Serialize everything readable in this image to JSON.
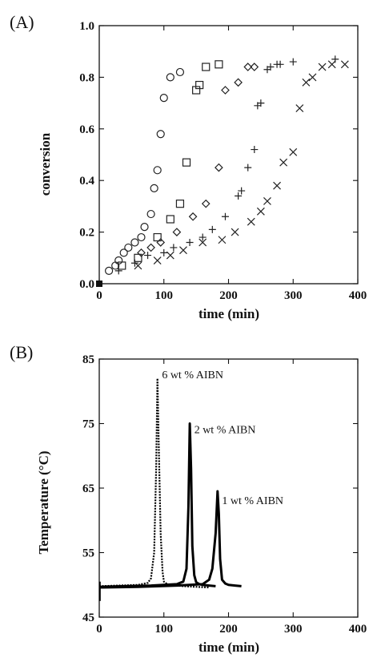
{
  "chart_data": [
    {
      "type": "scatter",
      "panel_label": "(A)",
      "xlabel": "time (min)",
      "ylabel": "conversion",
      "xlim": [
        0,
        400
      ],
      "ylim": [
        0,
        1.0
      ],
      "xticks": [
        "0",
        "100",
        "200",
        "300",
        "400"
      ],
      "yticks": [
        "0.0",
        "0.2",
        "0.4",
        "0.6",
        "0.8",
        "1.0"
      ],
      "grid": false,
      "series": [
        {
          "marker": "circle",
          "points": [
            [
              15,
              0.05
            ],
            [
              25,
              0.07
            ],
            [
              30,
              0.09
            ],
            [
              38,
              0.12
            ],
            [
              45,
              0.14
            ],
            [
              55,
              0.16
            ],
            [
              65,
              0.18
            ],
            [
              70,
              0.22
            ],
            [
              80,
              0.27
            ],
            [
              85,
              0.37
            ],
            [
              90,
              0.44
            ],
            [
              95,
              0.58
            ],
            [
              100,
              0.72
            ],
            [
              110,
              0.8
            ],
            [
              125,
              0.82
            ]
          ]
        },
        {
          "marker": "square",
          "points": [
            [
              35,
              0.07
            ],
            [
              60,
              0.1
            ],
            [
              90,
              0.18
            ],
            [
              110,
              0.25
            ],
            [
              125,
              0.31
            ],
            [
              135,
              0.47
            ],
            [
              150,
              0.75
            ],
            [
              155,
              0.77
            ],
            [
              165,
              0.84
            ],
            [
              185,
              0.85
            ]
          ]
        },
        {
          "marker": "diamond",
          "points": [
            [
              65,
              0.12
            ],
            [
              80,
              0.14
            ],
            [
              95,
              0.16
            ],
            [
              120,
              0.2
            ],
            [
              145,
              0.26
            ],
            [
              165,
              0.31
            ],
            [
              185,
              0.45
            ],
            [
              195,
              0.75
            ],
            [
              215,
              0.78
            ],
            [
              230,
              0.84
            ],
            [
              240,
              0.84
            ]
          ]
        },
        {
          "marker": "plus",
          "points": [
            [
              30,
              0.05
            ],
            [
              55,
              0.08
            ],
            [
              75,
              0.11
            ],
            [
              100,
              0.12
            ],
            [
              115,
              0.14
            ],
            [
              140,
              0.16
            ],
            [
              160,
              0.18
            ],
            [
              175,
              0.21
            ],
            [
              195,
              0.26
            ],
            [
              215,
              0.34
            ],
            [
              220,
              0.36
            ],
            [
              230,
              0.45
            ],
            [
              240,
              0.52
            ],
            [
              245,
              0.69
            ],
            [
              250,
              0.7
            ],
            [
              260,
              0.83
            ],
            [
              265,
              0.84
            ],
            [
              275,
              0.85
            ],
            [
              280,
              0.85
            ],
            [
              300,
              0.86
            ],
            [
              365,
              0.87
            ]
          ]
        },
        {
          "marker": "cross",
          "points": [
            [
              60,
              0.07
            ],
            [
              90,
              0.09
            ],
            [
              110,
              0.11
            ],
            [
              130,
              0.13
            ],
            [
              160,
              0.16
            ],
            [
              190,
              0.17
            ],
            [
              210,
              0.2
            ],
            [
              235,
              0.24
            ],
            [
              250,
              0.28
            ],
            [
              260,
              0.32
            ],
            [
              275,
              0.38
            ],
            [
              285,
              0.47
            ],
            [
              300,
              0.51
            ],
            [
              310,
              0.68
            ],
            [
              320,
              0.78
            ],
            [
              330,
              0.8
            ],
            [
              345,
              0.84
            ],
            [
              360,
              0.85
            ],
            [
              380,
              0.85
            ]
          ]
        }
      ],
      "origin_marker": [
        0,
        0
      ]
    },
    {
      "type": "line",
      "panel_label": "(B)",
      "xlabel": "time (min)",
      "ylabel": "Temperature (°C)",
      "xlim": [
        0,
        400
      ],
      "ylim": [
        45,
        85
      ],
      "xticks": [
        "0",
        "100",
        "200",
        "300",
        "400"
      ],
      "yticks": [
        "45",
        "55",
        "65",
        "75",
        "85"
      ],
      "grid": false,
      "series": [
        {
          "label": "6 wt % AIBN",
          "style": "dotted",
          "width": 2.2,
          "x": [
            0,
            30,
            60,
            75,
            80,
            85,
            88,
            90,
            92,
            95,
            98,
            100,
            105,
            110,
            120,
            130,
            150,
            170
          ],
          "y": [
            49.8,
            49.9,
            50.0,
            50.3,
            51.0,
            55.0,
            68.0,
            82.0,
            72.0,
            58.0,
            52.0,
            50.5,
            50.1,
            50.0,
            49.9,
            49.8,
            49.7,
            49.6
          ]
        },
        {
          "label": "2 wt % AIBN",
          "style": "solid",
          "width": 3.0,
          "x": [
            0,
            40,
            80,
            120,
            130,
            135,
            138,
            140,
            142,
            144,
            147,
            150,
            155,
            160,
            170,
            180
          ],
          "y": [
            49.7,
            49.8,
            49.9,
            50.1,
            50.5,
            52.5,
            62.0,
            75.0,
            68.0,
            56.0,
            51.5,
            50.4,
            50.1,
            50.0,
            49.9,
            49.8
          ]
        },
        {
          "label": "1 wt % AIBN",
          "style": "solid",
          "width": 3.0,
          "x": [
            0,
            60,
            120,
            160,
            170,
            175,
            180,
            183,
            185,
            187,
            190,
            195,
            200,
            210,
            220
          ],
          "y": [
            49.6,
            49.7,
            49.9,
            50.1,
            50.8,
            52.5,
            58.0,
            64.5,
            61.0,
            54.0,
            50.8,
            50.2,
            50.0,
            49.9,
            49.8
          ]
        }
      ],
      "annotations": [
        {
          "text": "6 wt % AIBN",
          "at": [
            97,
            82
          ]
        },
        {
          "text": "2 wt % AIBN",
          "at": [
            147,
            73.5
          ]
        },
        {
          "text": "1 wt % AIBN",
          "at": [
            190,
            62.5
          ]
        }
      ]
    }
  ]
}
